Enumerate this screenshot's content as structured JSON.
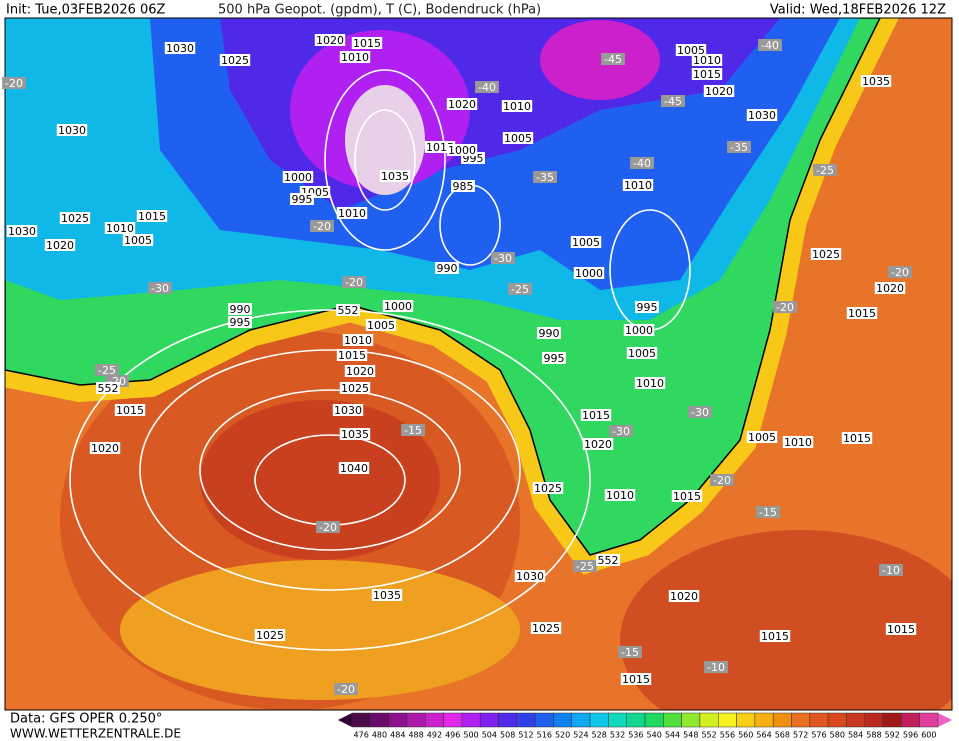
{
  "header": {
    "init": "Init: Tue,03FEB2026 06Z",
    "title": "500 hPa Geopot. (gpdm), T (C), Bodendruck (hPa)",
    "valid": "Valid: Wed,18FEB2026 12Z"
  },
  "footer": {
    "source": "Data: GFS OPER 0.250°",
    "site": "WWW.WETTERZENTRALE.DE"
  },
  "colorbar": {
    "values": [
      476,
      480,
      484,
      488,
      492,
      496,
      500,
      504,
      508,
      512,
      516,
      520,
      524,
      528,
      532,
      536,
      540,
      544,
      548,
      552,
      556,
      560,
      564,
      568,
      572,
      576,
      580,
      584,
      588,
      592,
      596,
      600
    ],
    "colors": [
      "#4a0a4a",
      "#6a0a6a",
      "#8c108c",
      "#ad18ad",
      "#cc20cc",
      "#e028e8",
      "#b020f0",
      "#8020f0",
      "#5028e8",
      "#3040e8",
      "#2060f0",
      "#1080f0",
      "#10a8f0",
      "#10c8e8",
      "#10d8c0",
      "#10d890",
      "#20d860",
      "#50e040",
      "#90e830",
      "#d0f020",
      "#f8f020",
      "#f8d010",
      "#f8b010",
      "#f09010",
      "#e87020",
      "#e05820",
      "#d84820",
      "#c83820",
      "#b82820",
      "#a01818",
      "#c02060",
      "#e040a0"
    ]
  },
  "pressure_labels": [
    "1030",
    "1025",
    "1020",
    "1015",
    "1010",
    "1030",
    "1015",
    "1010",
    "1005",
    "1025",
    "1020",
    "1030",
    "1000",
    "1005",
    "995",
    "1010",
    "1035",
    "1015",
    "995",
    "985",
    "990",
    "1020",
    "1010",
    "1005",
    "1000",
    "1005",
    "1010",
    "1015",
    "1020",
    "1030",
    "1035",
    "1010",
    "1005",
    "1000",
    "995",
    "990",
    "995",
    "1000",
    "1005",
    "1010",
    "1000",
    "1005",
    "1010",
    "1015",
    "1020",
    "1025",
    "1030",
    "1035",
    "1040",
    "990",
    "995",
    "1015",
    "1020",
    "1025",
    "1015",
    "1020",
    "1010",
    "1015",
    "1005",
    "1010",
    "1015",
    "1025",
    "1020",
    "1015",
    "1030",
    "1035",
    "1025",
    "1025",
    "1020",
    "1015",
    "1015",
    "1015"
  ],
  "temperature_labels": [
    "-20",
    "-45",
    "-40",
    "-40",
    "-45",
    "-35",
    "-25",
    "-40",
    "-35",
    "-20",
    "-30",
    "-25",
    "-20",
    "-30",
    "-20",
    "-20",
    "-25",
    "-20",
    "-15",
    "-30",
    "-30",
    "-20",
    "-15",
    "-20",
    "-25",
    "-10",
    "-15",
    "-10",
    "-20"
  ],
  "height_labels": [
    "552",
    "552",
    "552"
  ]
}
